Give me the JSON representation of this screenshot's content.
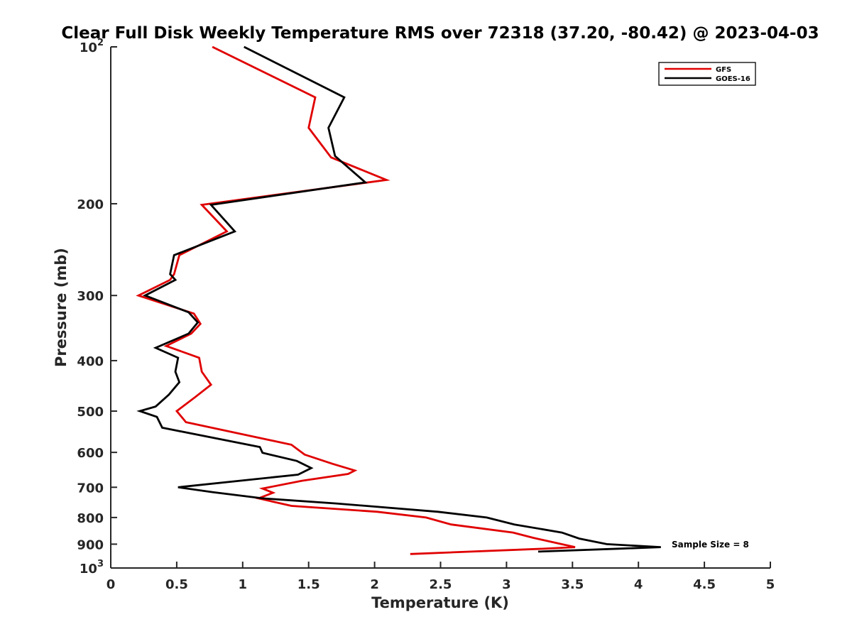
{
  "chart_data": {
    "type": "line",
    "title": "Clear Full Disk Weekly Temperature RMS over 72318 (37.20, -80.42) @ 2023-04-03",
    "xlabel": "Temperature (K)",
    "ylabel": "Pressure (mb)",
    "xlim": [
      0,
      5
    ],
    "ylim": [
      100,
      1000
    ],
    "y_scale": "log",
    "y_reversed": true,
    "x_ticks": [
      "0",
      "0.5",
      "1",
      "1.5",
      "2",
      "2.5",
      "3",
      "3.5",
      "4",
      "4.5",
      "5"
    ],
    "y_ticks": [
      {
        "value": 200,
        "label": "200"
      },
      {
        "value": 300,
        "label": "300"
      },
      {
        "value": 400,
        "label": "400"
      },
      {
        "value": 500,
        "label": "500"
      },
      {
        "value": 600,
        "label": "600"
      },
      {
        "value": 700,
        "label": "700"
      },
      {
        "value": 800,
        "label": "800"
      },
      {
        "value": 900,
        "label": "900"
      }
    ],
    "y_tick_exponents": [
      {
        "value": 100,
        "base": "10",
        "exp": "2"
      },
      {
        "value": 1000,
        "base": "10",
        "exp": "3"
      }
    ],
    "grid": false,
    "legend_position": "top-right",
    "annotation": "Sample Size = 8",
    "series": [
      {
        "name": "GFS",
        "color": "#e00000",
        "points": [
          [
            0.77,
            100
          ],
          [
            1.55,
            125
          ],
          [
            1.5,
            143
          ],
          [
            1.67,
            163
          ],
          [
            2.09,
            180
          ],
          [
            0.69,
            201
          ],
          [
            0.88,
            226
          ],
          [
            0.52,
            251
          ],
          [
            0.48,
            273
          ],
          [
            0.45,
            280
          ],
          [
            0.21,
            300
          ],
          [
            0.63,
            325
          ],
          [
            0.68,
            340
          ],
          [
            0.61,
            355
          ],
          [
            0.42,
            375
          ],
          [
            0.67,
            395
          ],
          [
            0.69,
            420
          ],
          [
            0.76,
            445
          ],
          [
            0.64,
            470
          ],
          [
            0.5,
            500
          ],
          [
            0.57,
            525
          ],
          [
            1.37,
            580
          ],
          [
            1.47,
            606
          ],
          [
            1.68,
            631
          ],
          [
            1.85,
            650
          ],
          [
            1.8,
            660
          ],
          [
            1.45,
            680
          ],
          [
            1.15,
            704
          ],
          [
            1.23,
            717
          ],
          [
            1.12,
            735
          ],
          [
            1.37,
            760
          ],
          [
            2.02,
            780
          ],
          [
            2.39,
            800
          ],
          [
            2.58,
            825
          ],
          [
            3.05,
            855
          ],
          [
            3.2,
            875
          ],
          [
            3.52,
            912
          ],
          [
            3.3,
            918
          ],
          [
            2.27,
            940
          ]
        ]
      },
      {
        "name": "GOES-16",
        "color": "#000000",
        "points": [
          [
            1.01,
            100
          ],
          [
            1.77,
            125
          ],
          [
            1.65,
            143
          ],
          [
            1.7,
            162
          ],
          [
            1.93,
            182
          ],
          [
            0.76,
            201
          ],
          [
            0.94,
            226
          ],
          [
            0.48,
            251
          ],
          [
            0.45,
            273
          ],
          [
            0.49,
            280
          ],
          [
            0.26,
            300
          ],
          [
            0.59,
            323
          ],
          [
            0.66,
            338
          ],
          [
            0.59,
            355
          ],
          [
            0.34,
            378
          ],
          [
            0.51,
            395
          ],
          [
            0.49,
            420
          ],
          [
            0.52,
            440
          ],
          [
            0.44,
            465
          ],
          [
            0.34,
            490
          ],
          [
            0.22,
            500
          ],
          [
            0.35,
            513
          ],
          [
            0.39,
            538
          ],
          [
            1.13,
            586
          ],
          [
            1.15,
            601
          ],
          [
            1.41,
            623
          ],
          [
            1.52,
            643
          ],
          [
            1.42,
            662
          ],
          [
            0.51,
            700
          ],
          [
            0.77,
            715
          ],
          [
            1.15,
            735
          ],
          [
            1.71,
            752
          ],
          [
            2.48,
            780
          ],
          [
            2.85,
            800
          ],
          [
            3.06,
            825
          ],
          [
            3.42,
            855
          ],
          [
            3.55,
            878
          ],
          [
            3.76,
            900
          ],
          [
            4.17,
            912
          ],
          [
            3.87,
            918
          ],
          [
            3.24,
            930
          ]
        ]
      }
    ]
  }
}
